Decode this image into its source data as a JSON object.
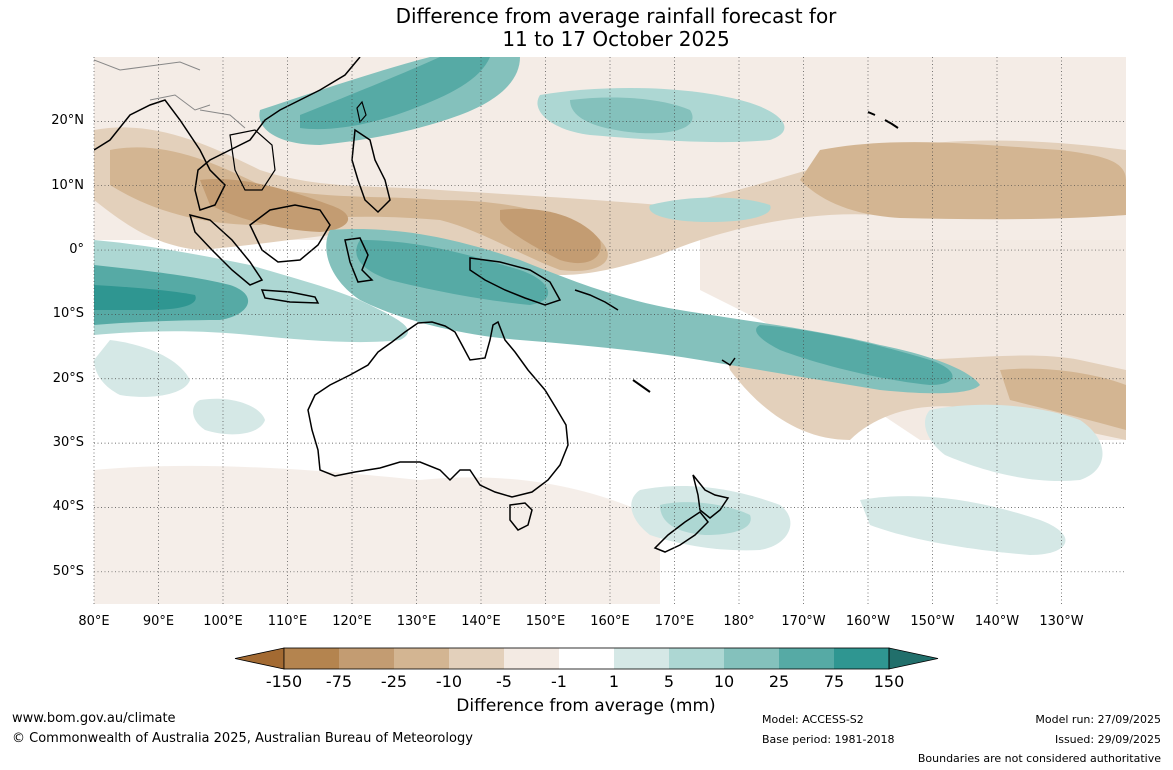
{
  "title": {
    "line1": "Difference from average rainfall forecast for",
    "line2": "11 to 17 October 2025"
  },
  "map": {
    "latitude_labels": [
      "20°N",
      "10°N",
      "0°",
      "10°S",
      "20°S",
      "30°S",
      "40°S",
      "50°S"
    ],
    "latitude_values": [
      20,
      10,
      0,
      -10,
      -20,
      -30,
      -40,
      -50
    ],
    "longitude_labels": [
      "80°E",
      "90°E",
      "100°E",
      "110°E",
      "120°E",
      "130°E",
      "140°E",
      "150°E",
      "160°E",
      "170°E",
      "180°",
      "170°W",
      "160°W",
      "150°W",
      "140°W",
      "130°W"
    ],
    "longitude_values": [
      80,
      90,
      100,
      110,
      120,
      130,
      140,
      150,
      160,
      170,
      180,
      190,
      200,
      210,
      220,
      230
    ],
    "extent": {
      "lon_min": 80,
      "lon_max": 240,
      "lat_min": -55,
      "lat_max": 30
    }
  },
  "colorbar": {
    "title": "Difference from average (mm)",
    "tick_labels": [
      "-150",
      "-75",
      "-25",
      "-10",
      "-5",
      "-1",
      "1",
      "5",
      "10",
      "25",
      "75",
      "150"
    ],
    "colors": [
      "#a36a32",
      "#b4844f",
      "#c39c72",
      "#d3b592",
      "#e3d0bb",
      "#f3eae3",
      "#ffffff",
      "#d5e8e6",
      "#add7d3",
      "#84c1bc",
      "#56aaa5",
      "#2f9691",
      "#216f6b"
    ]
  },
  "footer": {
    "website": "www.bom.gov.au/climate",
    "copyright": "© Commonwealth of Australia 2025, Australian Bureau of Meteorology",
    "model": "Model: ACCESS-S2",
    "base_period": "Base period: 1981-2018",
    "model_run": "Model run: 27/09/2025",
    "issued": "Issued: 29/09/2025",
    "disclaimer": "Boundaries are not considered authoritative"
  }
}
